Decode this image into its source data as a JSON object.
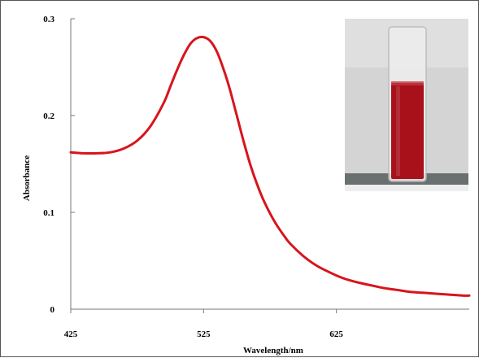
{
  "chart_data": {
    "type": "line",
    "xlabel": "Wavelength/nm",
    "ylabel": "Absorbance",
    "xlim": [
      425,
      725
    ],
    "ylim": [
      0,
      0.3
    ],
    "x_ticks": [
      "425",
      "525",
      "625"
    ],
    "y_ticks": [
      "0",
      "0.1",
      "0.2",
      "0.3"
    ],
    "grid": false,
    "legend": "none",
    "series": [
      {
        "color": "#d8141c",
        "x": [
          425,
          435,
          445,
          455,
          465,
          475,
          485,
          495,
          500,
          505,
          510,
          515,
          520,
          525,
          530,
          535,
          540,
          545,
          550,
          555,
          560,
          565,
          570,
          575,
          580,
          585,
          590,
          600,
          610,
          620,
          630,
          640,
          650,
          660,
          670,
          680,
          690,
          700,
          710,
          720,
          725
        ],
        "y": [
          0.162,
          0.161,
          0.161,
          0.162,
          0.166,
          0.174,
          0.189,
          0.213,
          0.23,
          0.247,
          0.262,
          0.274,
          0.28,
          0.281,
          0.277,
          0.266,
          0.248,
          0.226,
          0.2,
          0.174,
          0.15,
          0.13,
          0.113,
          0.099,
          0.087,
          0.077,
          0.068,
          0.055,
          0.045,
          0.038,
          0.032,
          0.028,
          0.025,
          0.022,
          0.02,
          0.018,
          0.017,
          0.016,
          0.015,
          0.014,
          0.014
        ]
      }
    ]
  },
  "inset": {
    "cuvette_color": "#a8101a",
    "background_color": "#d4d4d4"
  }
}
